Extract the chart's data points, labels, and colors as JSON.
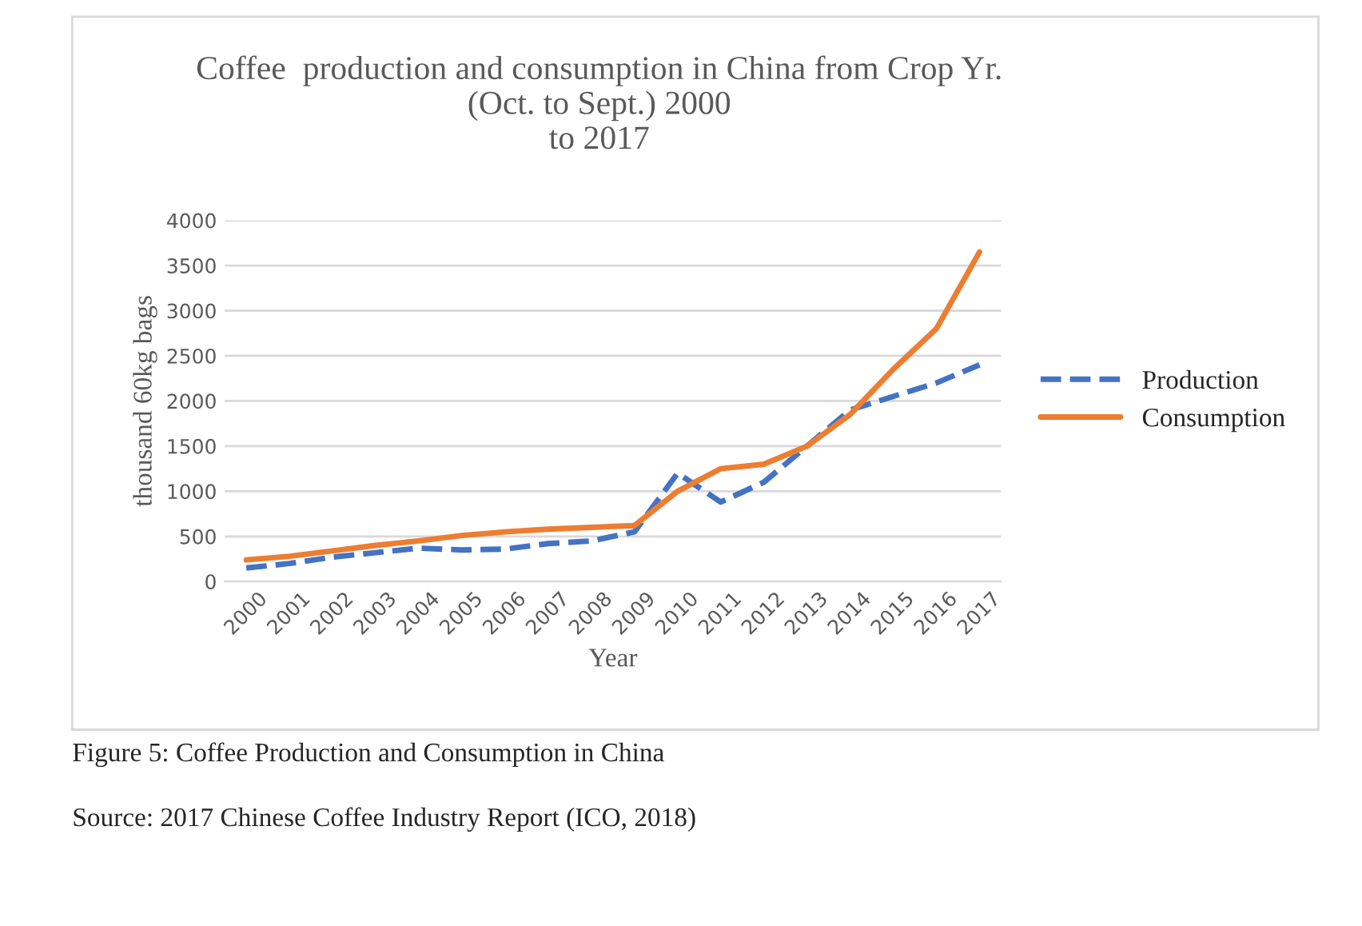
{
  "chart_data": {
    "type": "line",
    "title": "Coffee  production and consumption in China from Crop Yr.\n(Oct. to Sept.) 2000\nto 2017",
    "xlabel": "Year",
    "ylabel": "thousand 60kg bags",
    "categories": [
      "2000",
      "2001",
      "2002",
      "2003",
      "2004",
      "2005",
      "2006",
      "2007",
      "2008",
      "2009",
      "2010",
      "2011",
      "2012",
      "2013",
      "2014",
      "2015",
      "2016",
      "2017"
    ],
    "series": [
      {
        "name": "Production",
        "color": "#4472c4",
        "line_style": "dashed",
        "values": [
          150,
          200,
          270,
          320,
          370,
          350,
          360,
          420,
          450,
          550,
          1200,
          880,
          1100,
          1500,
          1900,
          2050,
          2200,
          2400
        ]
      },
      {
        "name": "Consumption",
        "color": "#ed7d31",
        "line_style": "solid",
        "values": [
          240,
          280,
          340,
          400,
          450,
          510,
          550,
          580,
          600,
          620,
          1000,
          1250,
          1300,
          1500,
          1850,
          2350,
          2800,
          3650
        ]
      }
    ],
    "ylim": [
      0,
      4000
    ],
    "yticks": [
      0,
      500,
      1000,
      1500,
      2000,
      2500,
      3000,
      3500,
      4000
    ],
    "grid": "y",
    "legend": "right",
    "annotations": [
      "Figure 5: Coffee Production and Consumption in China",
      "Source: 2017 Chinese Coffee Industry Report (ICO, 2018)"
    ]
  }
}
